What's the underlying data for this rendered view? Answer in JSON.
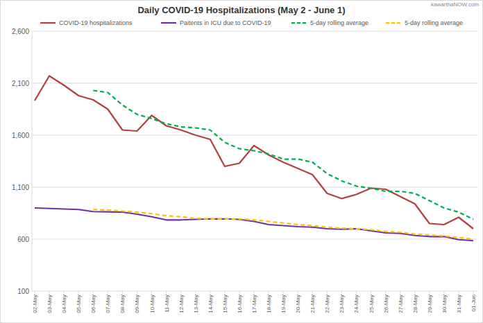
{
  "chart_data": {
    "type": "line",
    "title": "Daily COVID-19 Hospitalizations (May 2 - June 1)",
    "source": "kawarthaNOW.com",
    "categories": [
      "02-May",
      "03-May",
      "04-May",
      "05-May",
      "06-May",
      "07-May",
      "08-May",
      "09-May",
      "10-May",
      "11-May",
      "12-May",
      "13-May",
      "14-May",
      "15-May",
      "16-May",
      "17-May",
      "18-May",
      "19-May",
      "20-May",
      "21-May",
      "22-May",
      "23-May",
      "24-May",
      "25-May",
      "26-May",
      "27-May",
      "28-May",
      "29-May",
      "30-May",
      "31-May",
      "01-Jun"
    ],
    "series": [
      {
        "name": "COVID-19 hospitalizations",
        "color": "#b0413e",
        "line_style": "solid",
        "values": [
          1933,
          2170,
          2080,
          1980,
          1940,
          1850,
          1650,
          1640,
          1790,
          1690,
          1650,
          1600,
          1560,
          1300,
          1330,
          1500,
          1410,
          1340,
          1280,
          1220,
          1040,
          990,
          1030,
          1090,
          1080,
          1010,
          940,
          750,
          740,
          810,
          700
        ]
      },
      {
        "name": "Paitents in ICU due to COVID-19",
        "color": "#7030a0",
        "line_style": "solid",
        "values": [
          900,
          895,
          890,
          885,
          865,
          862,
          860,
          840,
          815,
          785,
          785,
          790,
          795,
          795,
          790,
          770,
          740,
          730,
          720,
          715,
          700,
          695,
          700,
          680,
          660,
          655,
          635,
          625,
          625,
          595,
          585
        ]
      },
      {
        "name": "5-day rolling average",
        "color": "#00b050",
        "line_style": "dashed",
        "values": [
          null,
          null,
          null,
          null,
          2030,
          2010,
          1890,
          1800,
          1760,
          1710,
          1680,
          1670,
          1650,
          1530,
          1470,
          1450,
          1420,
          1370,
          1370,
          1340,
          1230,
          1160,
          1110,
          1090,
          1060,
          1060,
          1040,
          970,
          900,
          860,
          790
        ]
      },
      {
        "name": "5-day rolling average",
        "color": "#ffc000",
        "line_style": "dashed",
        "values": [
          null,
          null,
          null,
          null,
          885,
          880,
          870,
          860,
          845,
          825,
          815,
          800,
          795,
          795,
          795,
          785,
          770,
          755,
          740,
          730,
          715,
          705,
          700,
          690,
          675,
          665,
          650,
          640,
          630,
          615,
          600
        ]
      }
    ],
    "ylim": [
      100,
      2600
    ],
    "yticks": [
      100,
      600,
      {
        "value": 1100,
        "label": "1,100"
      },
      {
        "value": 1600,
        "label": "1,600"
      },
      {
        "value": 2100,
        "label": "2,100"
      },
      {
        "value": 2600,
        "label": "2,600"
      }
    ],
    "grid": true,
    "legend": "top"
  }
}
